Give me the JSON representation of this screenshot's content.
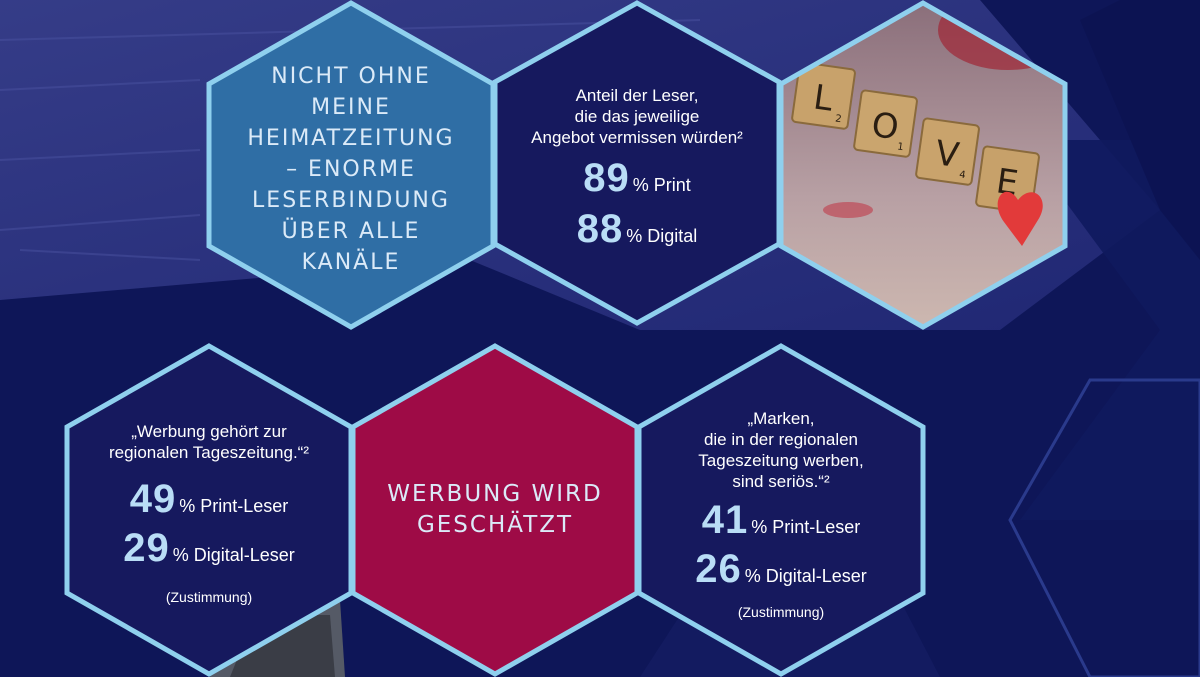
{
  "hex_heimat": {
    "title_lines": [
      "NICHT OHNE",
      "MEINE",
      "HEIMATZEITUNG",
      "– ENORME",
      "LESERBINDUNG",
      "ÜBER ALLE",
      "KANÄLE"
    ]
  },
  "hex_anteil": {
    "intro_lines": [
      "Anteil der Leser,",
      "die das jeweilige",
      "Angebot vermissen würden²"
    ],
    "stats": [
      {
        "value": "89",
        "suffix": "% Print"
      },
      {
        "value": "88",
        "suffix": "% Digital"
      }
    ]
  },
  "hex_love": {
    "tiles": [
      "L",
      "O",
      "V",
      "E"
    ],
    "tile_points": [
      "2",
      "1",
      "4",
      ""
    ]
  },
  "hex_werbung_gehoert": {
    "quote_lines": [
      "„Werbung gehört zur",
      "regionalen Tageszeitung.“²"
    ],
    "stats": [
      {
        "value": "49",
        "suffix": "% Print-Leser"
      },
      {
        "value": "29",
        "suffix": "% Digital-Leser"
      }
    ],
    "footnote": "(Zustimmung)"
  },
  "hex_werbung_geschaetzt": {
    "title_lines": [
      "WERBUNG WIRD",
      "GESCHÄTZT"
    ]
  },
  "hex_marken": {
    "quote_lines": [
      "„Marken,",
      "die in der regionalen",
      "Tageszeitung werben,",
      "sind seriös.“²"
    ],
    "stats": [
      {
        "value": "41",
        "suffix": "% Print-Leser"
      },
      {
        "value": "26",
        "suffix": "% Digital-Leser"
      }
    ],
    "footnote": "(Zustimmung)"
  },
  "colors": {
    "navy": "#0e1658",
    "hex_outline": "#8fd0ee",
    "heimat_fill": "#2f6ea5",
    "anteil_fill": "#16195e",
    "crimson": "#9e0b46"
  }
}
